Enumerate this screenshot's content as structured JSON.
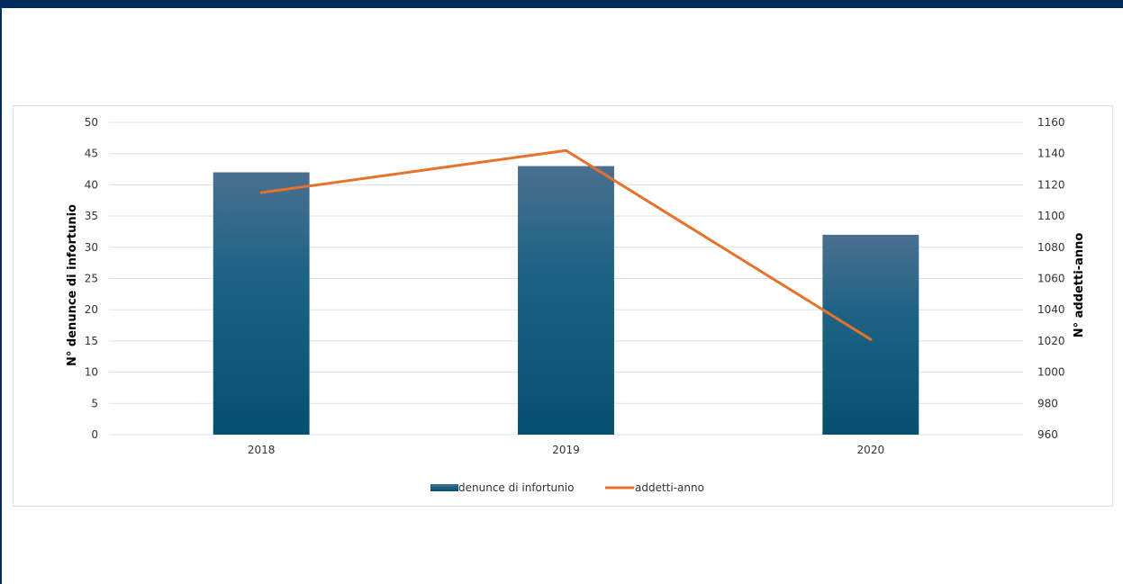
{
  "chart_data": {
    "type": "bar",
    "categories": [
      "2018",
      "2019",
      "2020"
    ],
    "series": [
      {
        "name": "denunce di infortunio",
        "type": "bar",
        "axis": "left",
        "values": [
          42,
          43,
          32
        ]
      },
      {
        "name": "addetti-anno",
        "type": "line",
        "axis": "right",
        "values": [
          1115,
          1142,
          1021
        ]
      }
    ],
    "ylabel": "N° denunce di infortunio",
    "y2label": "N° addetti-anno",
    "ylim": [
      0,
      50
    ],
    "y2lim": [
      960,
      1160
    ],
    "yticks": [
      0,
      5,
      10,
      15,
      20,
      25,
      30,
      35,
      40,
      45,
      50
    ],
    "y2ticks": [
      960,
      980,
      1000,
      1020,
      1040,
      1060,
      1080,
      1100,
      1120,
      1140,
      1160
    ],
    "grid": true,
    "legend_position": "bottom",
    "colors": {
      "bar_top": "#4a7090",
      "bar_bottom": "#06506f",
      "line": "#e8722c",
      "grid": "#d6e3ec",
      "frame": "#002b5c"
    }
  }
}
